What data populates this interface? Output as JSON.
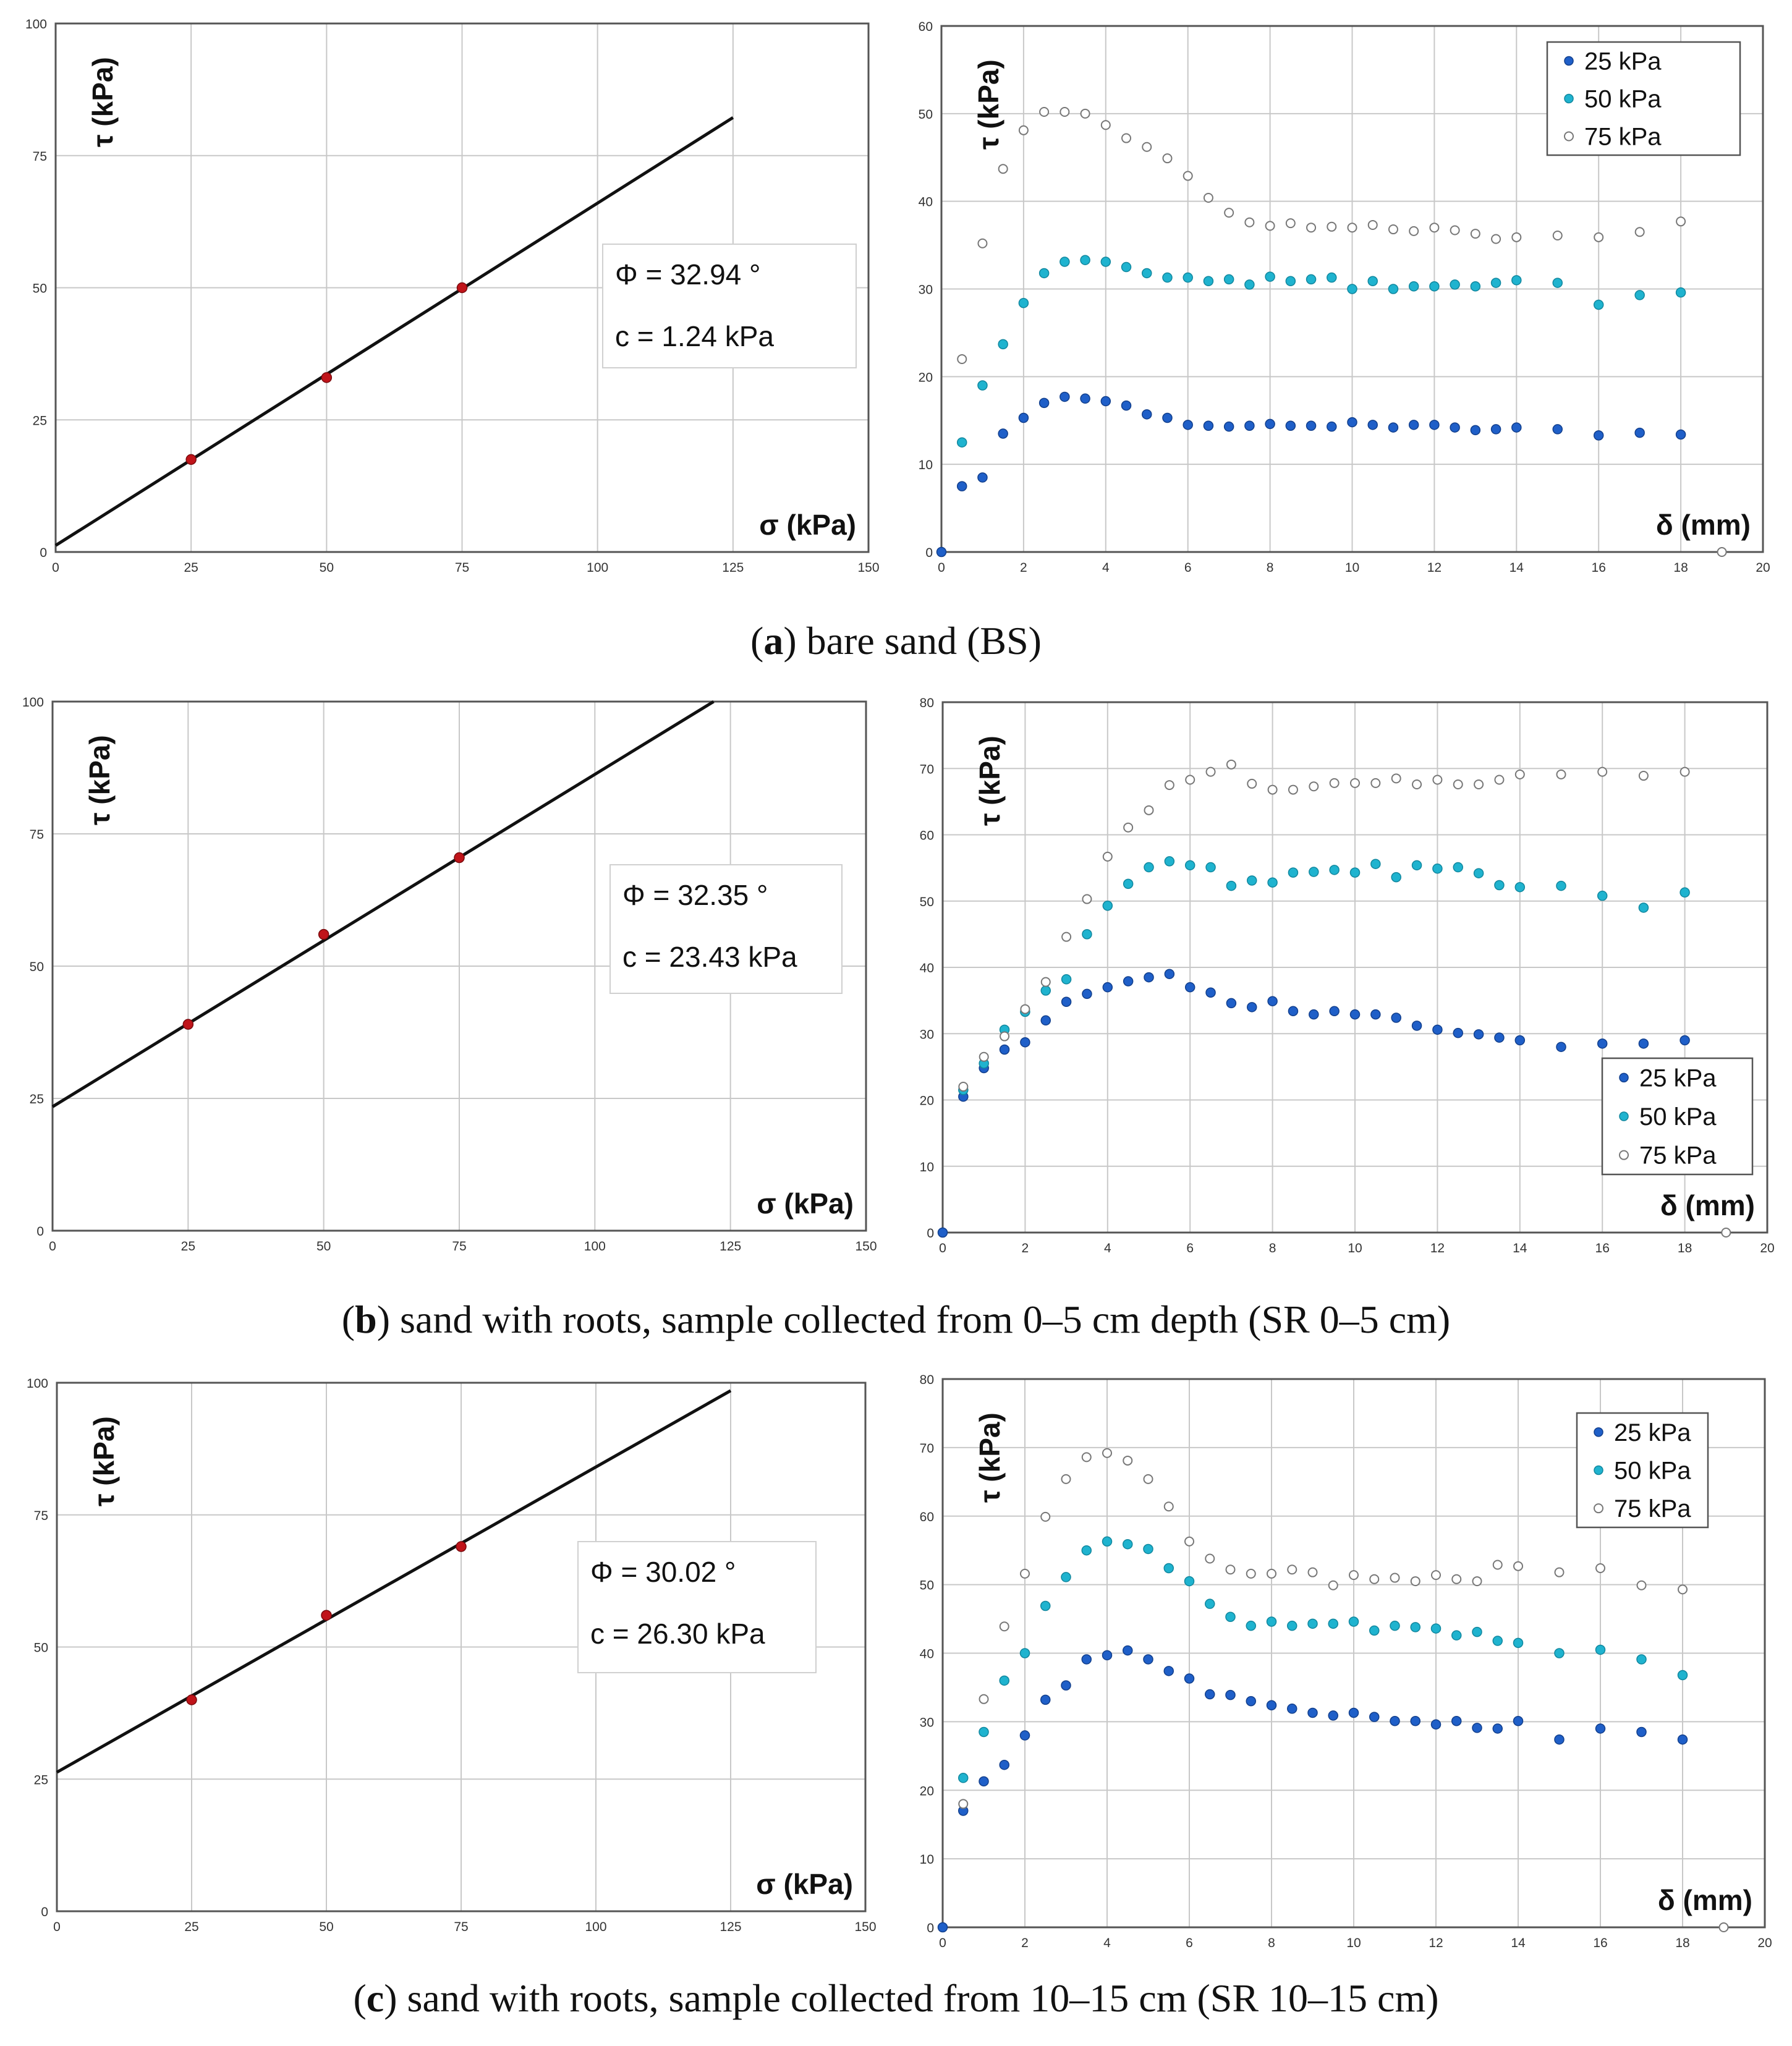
{
  "chart_data": [
    {
      "id": "a-left",
      "type": "scatter",
      "title": "",
      "xlabel": "σ (kPa)",
      "ylabel": "τ (kPa)",
      "xlim": [
        0,
        150
      ],
      "ylim": [
        0,
        100
      ],
      "xticks": [
        0,
        25,
        50,
        75,
        100,
        125,
        150
      ],
      "yticks": [
        0,
        25,
        50,
        75,
        100
      ],
      "points": [
        [
          25,
          17.5
        ],
        [
          50,
          33
        ],
        [
          75,
          50
        ]
      ],
      "fit_line": {
        "x": [
          0,
          125
        ],
        "y": [
          1.24,
          82.2
        ]
      },
      "annotation": [
        "Φ = 32.94 °",
        "c = 1.24 kPa"
      ]
    },
    {
      "id": "a-right",
      "type": "scatter",
      "xlabel": "δ (mm)",
      "ylabel": "τ (kPa)",
      "xlim": [
        0,
        20
      ],
      "ylim": [
        0,
        60
      ],
      "xticks": [
        0,
        2,
        4,
        6,
        8,
        10,
        12,
        14,
        16,
        18,
        20
      ],
      "yticks": [
        0,
        10,
        20,
        30,
        40,
        50,
        60
      ],
      "legend_position": "top-right",
      "series": [
        {
          "name": "25 kPa",
          "color": "#1f5fc8",
          "x": [
            0,
            0.5,
            1,
            1.5,
            2,
            2.5,
            3,
            3.5,
            4,
            4.5,
            5,
            5.5,
            6,
            6.5,
            7,
            7.5,
            8,
            8.5,
            9,
            9.5,
            10,
            10.5,
            11,
            11.5,
            12,
            12.5,
            13,
            13.5,
            14,
            15,
            16,
            17,
            18
          ],
          "y": [
            0,
            7.5,
            8.5,
            13.5,
            15.3,
            17,
            17.7,
            17.5,
            17.2,
            16.7,
            15.7,
            15.3,
            14.5,
            14.4,
            14.3,
            14.4,
            14.6,
            14.4,
            14.4,
            14.3,
            14.8,
            14.5,
            14.2,
            14.5,
            14.5,
            14.2,
            13.9,
            14.0,
            14.2,
            14.0,
            13.3,
            13.6,
            13.4
          ]
        },
        {
          "name": "50 kPa",
          "color": "#1fb3cf",
          "x": [
            0.5,
            1,
            1.5,
            2,
            2.5,
            3,
            3.5,
            4,
            4.5,
            5,
            5.5,
            6,
            6.5,
            7,
            7.5,
            8,
            8.5,
            9,
            9.5,
            10,
            10.5,
            11,
            11.5,
            12,
            12.5,
            13,
            13.5,
            14,
            15,
            16,
            17,
            18
          ],
          "y": [
            12.5,
            19,
            23.7,
            28.4,
            31.8,
            33.1,
            33.3,
            33.1,
            32.5,
            31.8,
            31.3,
            31.3,
            30.9,
            31.1,
            30.5,
            31.4,
            30.9,
            31.1,
            31.3,
            30.0,
            30.9,
            30.0,
            30.3,
            30.3,
            30.5,
            30.3,
            30.7,
            31.0,
            30.7,
            28.2,
            29.3,
            29.6
          ]
        },
        {
          "name": "75 kPa",
          "color": "#ffffff",
          "x": [
            0.5,
            1,
            1.5,
            2,
            2.5,
            3,
            3.5,
            4,
            4.5,
            5,
            5.5,
            6,
            6.5,
            7,
            7.5,
            8,
            8.5,
            9,
            9.5,
            10,
            10.5,
            11,
            11.5,
            12,
            12.5,
            13,
            13.5,
            14,
            15,
            16,
            17,
            18,
            19
          ],
          "y": [
            22,
            35.2,
            43.7,
            48.1,
            50.2,
            50.2,
            50.0,
            48.7,
            47.2,
            46.2,
            44.9,
            42.9,
            40.4,
            38.7,
            37.6,
            37.2,
            37.5,
            37.0,
            37.1,
            37.0,
            37.3,
            36.8,
            36.6,
            37.0,
            36.7,
            36.3,
            35.7,
            35.9,
            36.1,
            35.9,
            36.5,
            37.7,
            0
          ]
        }
      ]
    },
    {
      "id": "b-left",
      "type": "scatter",
      "xlabel": "σ (kPa)",
      "ylabel": "τ (kPa)",
      "xlim": [
        0,
        150
      ],
      "ylim": [
        0,
        100
      ],
      "xticks": [
        0,
        25,
        50,
        75,
        100,
        125,
        150
      ],
      "yticks": [
        0,
        25,
        50,
        75,
        100
      ],
      "points": [
        [
          25,
          39
        ],
        [
          50,
          56
        ],
        [
          75,
          70.5
        ]
      ],
      "fit_line": {
        "x": [
          0,
          121.9
        ],
        "y": [
          23.43,
          100
        ]
      },
      "annotation": [
        "Φ = 32.35 °",
        "c = 23.43 kPa"
      ]
    },
    {
      "id": "b-right",
      "type": "scatter",
      "xlabel": "δ (mm)",
      "ylabel": "τ (kPa)",
      "xlim": [
        0,
        20
      ],
      "ylim": [
        0,
        80
      ],
      "xticks": [
        0,
        2,
        4,
        6,
        8,
        10,
        12,
        14,
        16,
        18,
        20
      ],
      "yticks": [
        0,
        10,
        20,
        30,
        40,
        50,
        60,
        70,
        80
      ],
      "legend_position": "bottom-right",
      "series": [
        {
          "name": "25 kPa",
          "color": "#1f5fc8",
          "x": [
            0,
            0.5,
            1,
            1.5,
            2,
            2.5,
            3,
            3.5,
            4,
            4.5,
            5,
            5.5,
            6,
            6.5,
            7,
            7.5,
            8,
            8.5,
            9,
            9.5,
            10,
            10.5,
            11,
            11.5,
            12,
            12.5,
            13,
            13.5,
            14,
            15,
            16,
            17,
            18
          ],
          "y": [
            0,
            20.5,
            24.8,
            27.6,
            28.7,
            32,
            34.8,
            36,
            37,
            37.9,
            38.5,
            39,
            37,
            36.2,
            34.6,
            34,
            34.9,
            33.4,
            32.9,
            33.4,
            32.9,
            32.9,
            32.4,
            31.2,
            30.6,
            30.1,
            29.9,
            29.4,
            29,
            28.0,
            28.5,
            28.5,
            29.0
          ]
        },
        {
          "name": "50 kPa",
          "color": "#1fb3cf",
          "x": [
            0.5,
            1,
            1.5,
            2,
            2.5,
            3,
            3.5,
            4,
            4.5,
            5,
            5.5,
            6,
            6.5,
            7,
            7.5,
            8,
            8.5,
            9,
            9.5,
            10,
            10.5,
            11,
            11.5,
            12,
            12.5,
            13,
            13.5,
            14,
            15,
            16,
            17,
            18
          ],
          "y": [
            21.5,
            25.5,
            30.6,
            33.3,
            36.5,
            38.2,
            45,
            49.3,
            52.6,
            55.1,
            56.0,
            55.4,
            55.1,
            52.3,
            53.1,
            52.8,
            54.3,
            54.4,
            54.7,
            54.3,
            55.6,
            53.6,
            55.4,
            54.9,
            55.1,
            54.2,
            52.4,
            52.1,
            52.3,
            50.8,
            49.0,
            51.3
          ]
        },
        {
          "name": "75 kPa",
          "color": "#ffffff",
          "x": [
            0.5,
            1,
            1.5,
            2,
            2.5,
            3,
            3.5,
            4,
            4.5,
            5,
            5.5,
            6,
            6.5,
            7,
            7.5,
            8,
            8.5,
            9,
            9.5,
            10,
            10.5,
            11,
            11.5,
            12,
            12.5,
            13,
            13.5,
            14,
            15,
            16,
            17,
            18,
            19
          ],
          "y": [
            22,
            26.5,
            29.6,
            33.7,
            37.8,
            44.6,
            50.3,
            56.7,
            61.1,
            63.7,
            67.5,
            68.3,
            69.5,
            70.6,
            67.7,
            66.8,
            66.8,
            67.3,
            67.8,
            67.8,
            67.8,
            68.5,
            67.6,
            68.3,
            67.6,
            67.6,
            68.3,
            69.1,
            69.1,
            69.5,
            68.9,
            69.5,
            0
          ]
        }
      ]
    },
    {
      "id": "c-left",
      "type": "scatter",
      "xlabel": "σ (kPa)",
      "ylabel": "τ (kPa)",
      "xlim": [
        0,
        150
      ],
      "ylim": [
        0,
        100
      ],
      "xticks": [
        0,
        25,
        50,
        75,
        100,
        125,
        150
      ],
      "yticks": [
        0,
        25,
        50,
        75,
        100
      ],
      "points": [
        [
          25,
          40
        ],
        [
          50,
          56
        ],
        [
          75,
          69
        ]
      ],
      "fit_line": {
        "x": [
          0,
          125
        ],
        "y": [
          26.3,
          98.5
        ]
      },
      "annotation": [
        "Φ = 30.02 °",
        "c = 26.30 kPa"
      ]
    },
    {
      "id": "c-right",
      "type": "scatter",
      "xlabel": "δ (mm)",
      "ylabel": "τ (kPa)",
      "xlim": [
        0,
        20
      ],
      "ylim": [
        0,
        80
      ],
      "xticks": [
        0,
        2,
        4,
        6,
        8,
        10,
        12,
        14,
        16,
        18,
        20
      ],
      "yticks": [
        0,
        10,
        20,
        30,
        40,
        50,
        60,
        70,
        80
      ],
      "legend_position": "top-right",
      "series": [
        {
          "name": "25 kPa",
          "color": "#1f5fc8",
          "x": [
            0,
            0.5,
            1,
            1.5,
            2,
            2.5,
            3,
            3.5,
            4,
            4.5,
            5,
            5.5,
            6,
            6.5,
            7,
            7.5,
            8,
            8.5,
            9,
            9.5,
            10,
            10.5,
            11,
            11.5,
            12,
            12.5,
            13,
            13.5,
            14,
            15,
            16,
            17,
            18
          ],
          "y": [
            0,
            17,
            21.3,
            23.7,
            28,
            33.2,
            35.3,
            39.1,
            39.7,
            40.4,
            39.1,
            37.4,
            36.3,
            34,
            33.9,
            33,
            32.4,
            31.9,
            31.3,
            30.9,
            31.3,
            30.7,
            30.1,
            30.1,
            29.6,
            30.1,
            29.1,
            29.0,
            30.1,
            27.4,
            29.0,
            28.5,
            27.4
          ]
        },
        {
          "name": "50 kPa",
          "color": "#1fb3cf",
          "x": [
            0.5,
            1,
            1.5,
            2,
            2.5,
            3,
            3.5,
            4,
            4.5,
            5,
            5.5,
            6,
            6.5,
            7,
            7.5,
            8,
            8.5,
            9,
            9.5,
            10,
            10.5,
            11,
            11.5,
            12,
            12.5,
            13,
            13.5,
            14,
            15,
            16,
            17,
            18
          ],
          "y": [
            21.8,
            28.5,
            36,
            40,
            46.9,
            51.1,
            55.0,
            56.3,
            55.9,
            55.2,
            52.4,
            50.5,
            47.2,
            45.3,
            44.0,
            44.6,
            44.0,
            44.3,
            44.3,
            44.6,
            43.3,
            44.0,
            43.8,
            43.6,
            42.6,
            43.1,
            41.8,
            41.5,
            40.0,
            40.5,
            39.1,
            36.8
          ]
        },
        {
          "name": "75 kPa",
          "color": "#ffffff",
          "x": [
            0.5,
            1,
            1.5,
            2,
            2.5,
            3,
            3.5,
            4,
            4.5,
            5,
            5.5,
            6,
            6.5,
            7,
            7.5,
            8,
            8.5,
            9,
            9.5,
            10,
            10.5,
            11,
            11.5,
            12,
            12.5,
            13,
            13.5,
            14,
            15,
            16,
            17,
            18,
            19
          ],
          "y": [
            18,
            33.3,
            43.9,
            51.6,
            59.9,
            65.4,
            68.6,
            69.2,
            68.1,
            65.4,
            61.4,
            56.3,
            53.8,
            52.2,
            51.6,
            51.6,
            52.2,
            51.8,
            49.9,
            51.4,
            50.8,
            51.0,
            50.5,
            51.4,
            50.8,
            50.5,
            52.9,
            52.7,
            51.8,
            52.4,
            49.9,
            49.3,
            0
          ]
        }
      ]
    }
  ],
  "captions": [
    {
      "label": "a",
      "pre": "(",
      "post": ") bare sand (BS)"
    },
    {
      "label": "b",
      "pre": "(",
      "post": ") sand with roots, sample collected from 0–5 cm depth (SR 0–5 cm)"
    },
    {
      "label": "c",
      "pre": "(",
      "post": ") sand with roots, sample collected from 10–15 cm (SR 10–15 cm)"
    }
  ]
}
